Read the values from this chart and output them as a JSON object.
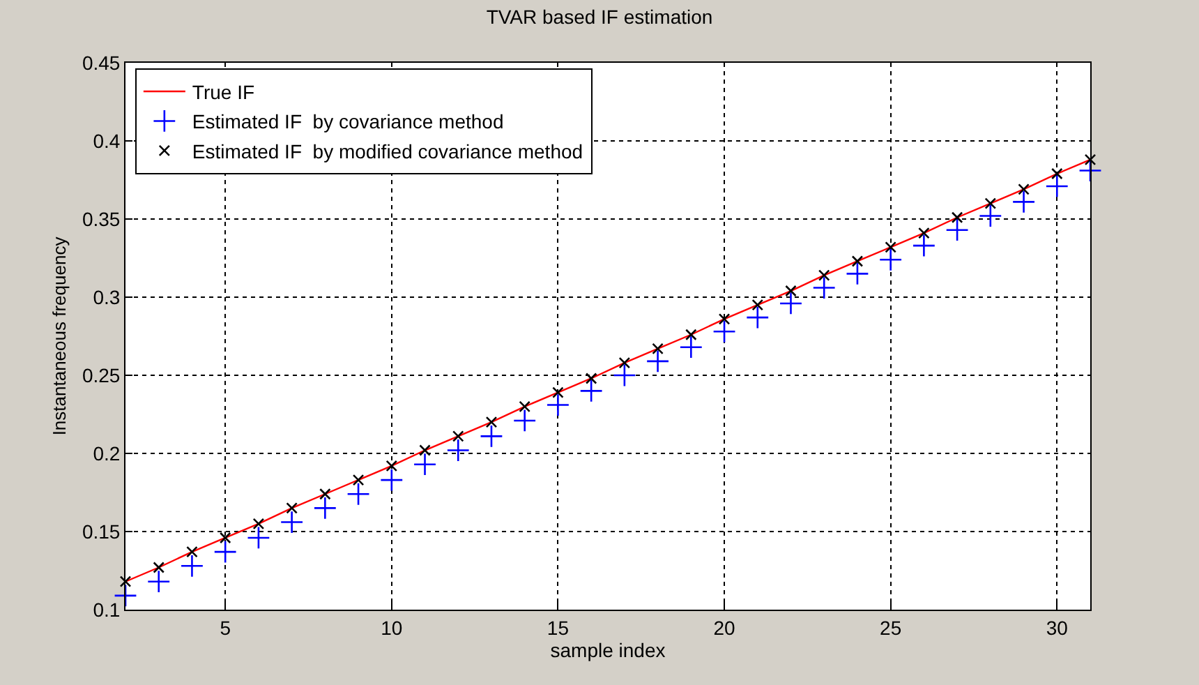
{
  "chart_data": {
    "type": "line",
    "title": "TVAR based IF estimation",
    "xlabel": "sample index",
    "ylabel": "Instantaneous frequency",
    "x": [
      2,
      3,
      4,
      5,
      6,
      7,
      8,
      9,
      10,
      11,
      12,
      13,
      14,
      15,
      16,
      17,
      18,
      19,
      20,
      21,
      22,
      23,
      24,
      25,
      26,
      27,
      28,
      29,
      30,
      31
    ],
    "series": [
      {
        "name": "True IF",
        "color": "#ff0000",
        "marker": "none",
        "values": [
          0.118,
          0.127,
          0.137,
          0.146,
          0.155,
          0.165,
          0.174,
          0.183,
          0.192,
          0.202,
          0.211,
          0.22,
          0.23,
          0.239,
          0.248,
          0.258,
          0.267,
          0.276,
          0.286,
          0.295,
          0.304,
          0.314,
          0.323,
          0.332,
          0.341,
          0.351,
          0.36,
          0.369,
          0.379,
          0.388
        ]
      },
      {
        "name": "Estimated IF  by covariance method",
        "type": "scatter",
        "color": "#0000ff",
        "marker": "cross",
        "values": [
          0.109,
          0.118,
          0.128,
          0.137,
          0.146,
          0.156,
          0.165,
          0.174,
          0.183,
          0.193,
          0.202,
          0.211,
          0.221,
          0.231,
          0.24,
          0.25,
          0.259,
          0.268,
          0.278,
          0.287,
          0.296,
          0.306,
          0.315,
          0.324,
          0.333,
          0.343,
          0.352,
          0.361,
          0.371,
          0.381
        ]
      },
      {
        "name": "Estimated IF  by modified covariance method",
        "type": "scatter",
        "color": "#000000",
        "marker": "x",
        "values": [
          0.118,
          0.127,
          0.137,
          0.146,
          0.155,
          0.165,
          0.174,
          0.183,
          0.192,
          0.202,
          0.211,
          0.22,
          0.23,
          0.239,
          0.248,
          0.258,
          0.267,
          0.276,
          0.286,
          0.295,
          0.304,
          0.314,
          0.323,
          0.332,
          0.341,
          0.351,
          0.36,
          0.369,
          0.379,
          0.388
        ]
      }
    ],
    "xlim": [
      2,
      31
    ],
    "xticks": [
      5,
      10,
      15,
      20,
      25,
      30
    ],
    "ylim": [
      0.1,
      0.45
    ],
    "yticks": [
      0.1,
      0.15,
      0.2,
      0.25,
      0.3,
      0.35,
      0.4,
      0.45
    ],
    "grid": true,
    "legend": "top left"
  }
}
